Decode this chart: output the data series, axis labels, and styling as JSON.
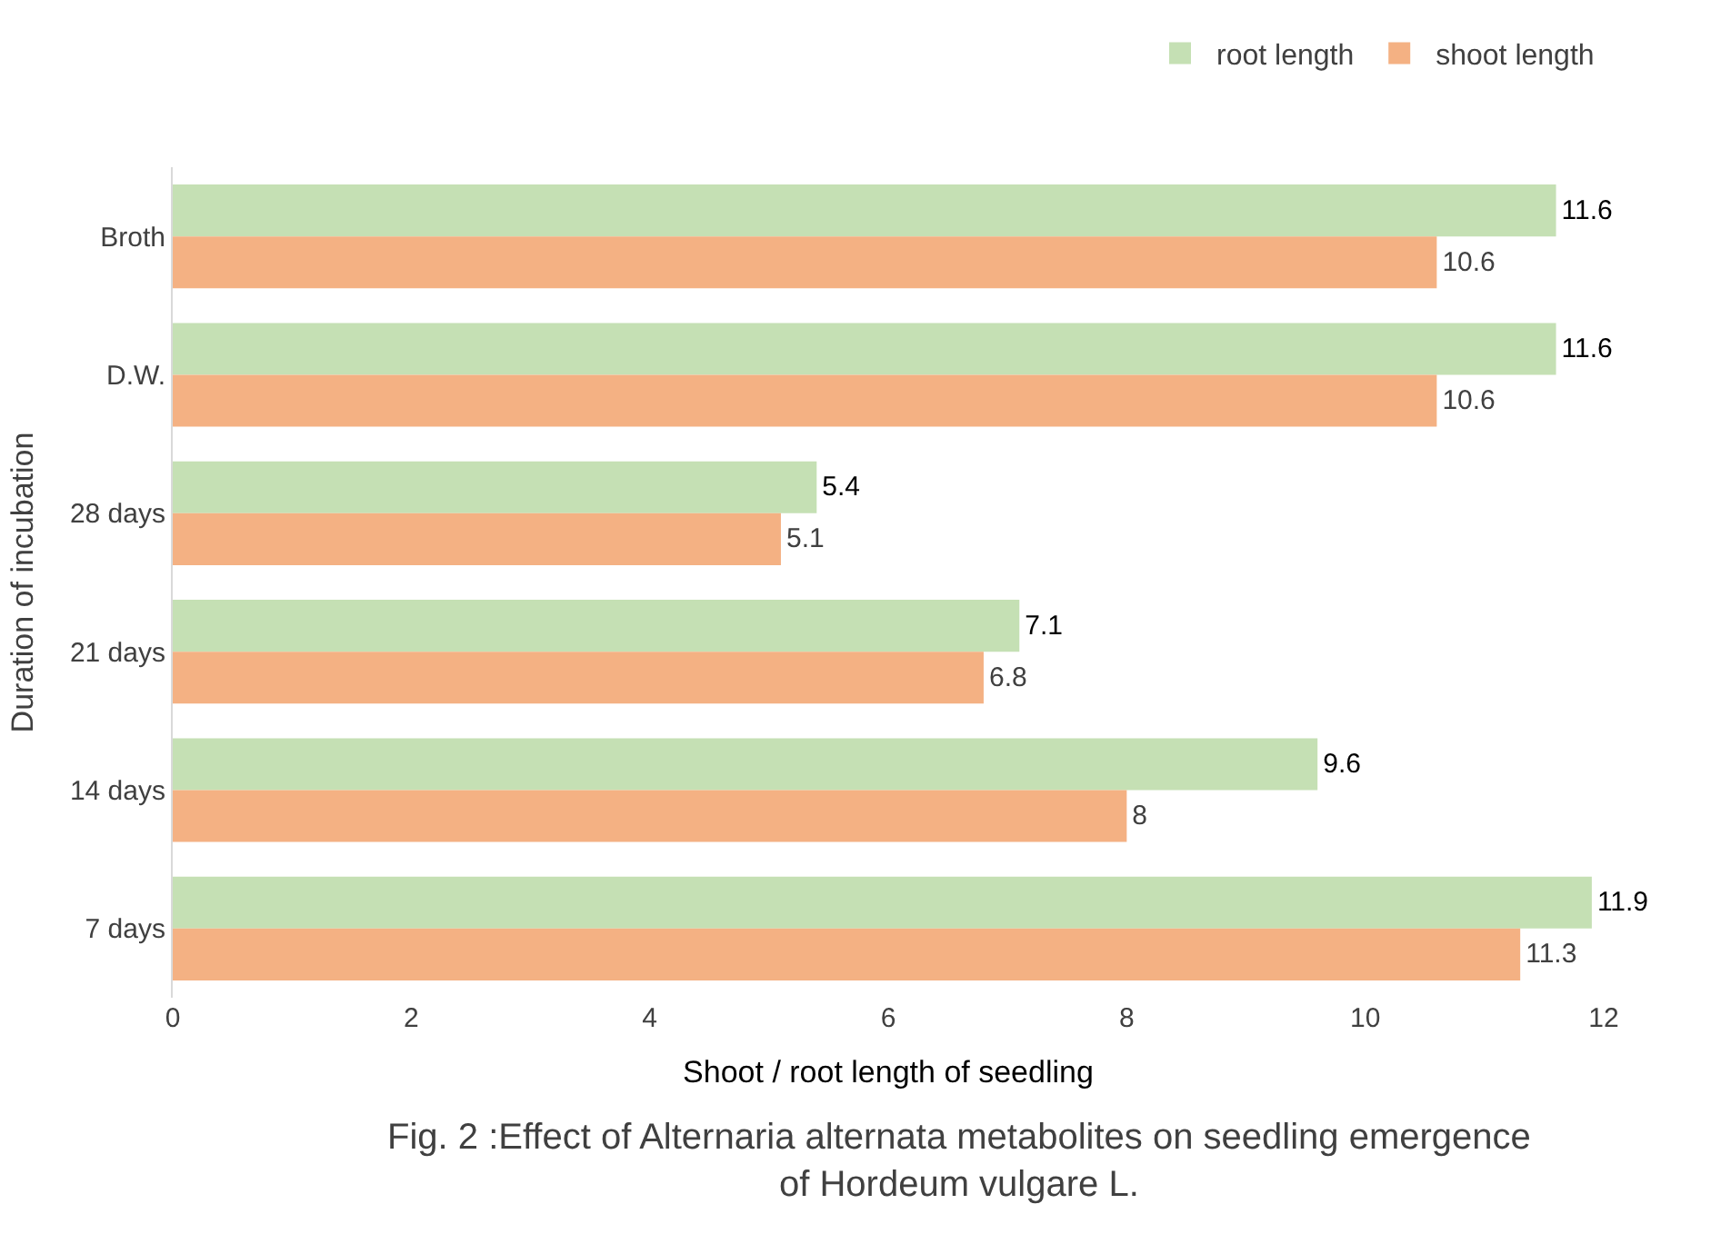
{
  "chart_data": {
    "type": "bar",
    "orientation": "horizontal",
    "categories": [
      "Broth",
      "D.W.",
      "28 days",
      "21 days",
      "14 days",
      "7 days"
    ],
    "series": [
      {
        "name": "root length",
        "color": "#c5e0b4",
        "values": [
          11.6,
          11.6,
          5.4,
          7.1,
          9.6,
          11.9
        ]
      },
      {
        "name": "shoot length",
        "color": "#f4b183",
        "values": [
          10.6,
          10.6,
          5.1,
          6.8,
          8,
          11.3
        ]
      }
    ],
    "xlim": [
      0,
      12
    ],
    "xticks": [
      0,
      2,
      4,
      6,
      8,
      10,
      12
    ],
    "xlabel": "Shoot / root length of seedling",
    "ylabel": "Duration of incubation",
    "annotations": [
      "Fig. 2 :Effect of Alternaria alternata metabolites on seedling emergence\nof Hordeum vulgare L."
    ],
    "data_labels": true,
    "legend": "top right"
  }
}
